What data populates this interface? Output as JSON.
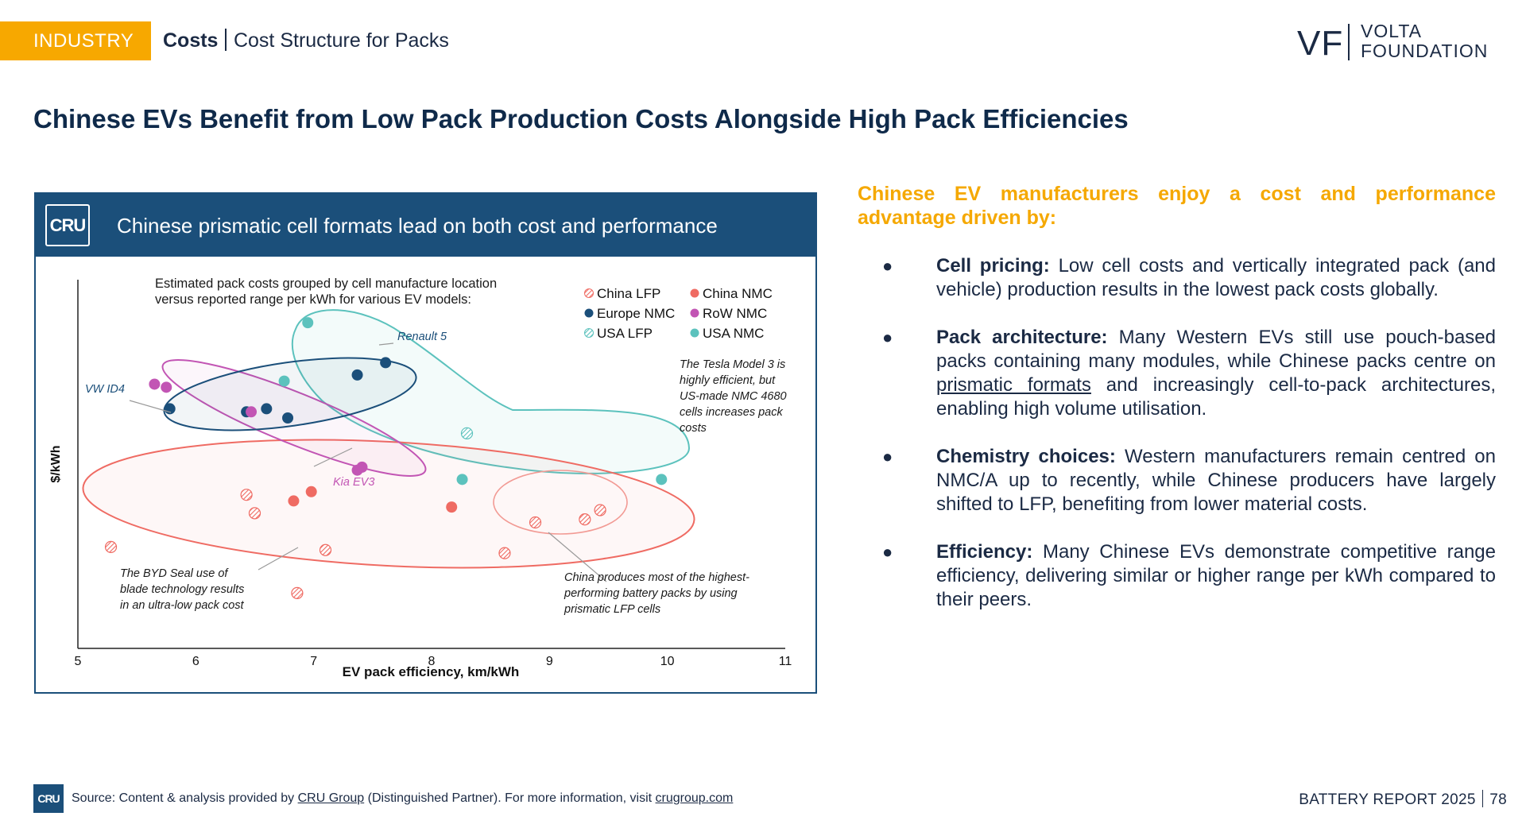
{
  "header": {
    "tag": "INDUSTRY",
    "section": "Costs",
    "subsection": "Cost Structure for Packs",
    "logo_mark": "VF",
    "logo_line1": "VOLTA",
    "logo_line2": "FOUNDATION"
  },
  "title": "Chinese EVs Benefit from Low Pack Production Costs Alongside High Pack Efficiencies",
  "panel": {
    "badge": "CRU",
    "heading": "Chinese prismatic cell formats lead on both cost and performance"
  },
  "chart_data": {
    "type": "scatter",
    "xlabel": "EV pack efficiency, km/kWh",
    "ylabel": "$/kWh",
    "xlim": [
      5,
      11
    ],
    "xticks": [
      "5",
      "6",
      "7",
      "8",
      "9",
      "10",
      "11"
    ],
    "yticks_shown": false,
    "subtitle_lines": [
      "Estimated pack costs grouped by cell manufacture location",
      "versus reported range per kWh for various EV models:"
    ],
    "legend": [
      {
        "name": "China LFP",
        "color": "#ef6b63",
        "hatched": true
      },
      {
        "name": "China NMC",
        "color": "#ef6b63",
        "hatched": false
      },
      {
        "name": "Europe NMC",
        "color": "#1b4f7a",
        "hatched": false
      },
      {
        "name": "RoW NMC",
        "color": "#c255b4",
        "hatched": false
      },
      {
        "name": "USA LFP",
        "color": "#5cc2bd",
        "hatched": true
      },
      {
        "name": "USA NMC",
        "color": "#5cc2bd",
        "hatched": false
      }
    ],
    "series": [
      {
        "name": "China LFP",
        "points": [
          [
            5.28,
            33
          ],
          [
            6.43,
            50
          ],
          [
            6.5,
            44
          ],
          [
            7.1,
            32
          ],
          [
            6.86,
            18
          ],
          [
            8.62,
            31
          ],
          [
            8.88,
            41
          ],
          [
            9.3,
            42
          ],
          [
            9.43,
            45
          ]
        ]
      },
      {
        "name": "China NMC",
        "points": [
          [
            6.83,
            48
          ],
          [
            6.98,
            51
          ],
          [
            8.17,
            46
          ]
        ]
      },
      {
        "name": "Europe NMC",
        "points": [
          [
            5.78,
            78
          ],
          [
            6.43,
            77
          ],
          [
            6.6,
            78
          ],
          [
            6.78,
            75
          ],
          [
            7.37,
            89
          ],
          [
            7.61,
            93
          ]
        ]
      },
      {
        "name": "RoW NMC",
        "points": [
          [
            5.65,
            86
          ],
          [
            5.75,
            85
          ],
          [
            6.47,
            77
          ],
          [
            7.37,
            58
          ],
          [
            7.41,
            59
          ]
        ]
      },
      {
        "name": "USA LFP",
        "points": [
          [
            8.3,
            70
          ]
        ]
      },
      {
        "name": "USA NMC",
        "points": [
          [
            6.95,
            106
          ],
          [
            6.75,
            87
          ],
          [
            8.26,
            55
          ],
          [
            9.95,
            55
          ]
        ]
      }
    ],
    "annotations": [
      {
        "text": "Renault 5",
        "style": "italic",
        "color": "#1b4f7a"
      },
      {
        "text": "VW ID4",
        "style": "italic",
        "color": "#1b4f7a"
      },
      {
        "text": "Kia EV3",
        "style": "italic",
        "color": "#c255b4"
      },
      {
        "lines": [
          "The Tesla Model 3 is",
          "highly efficient, but",
          "US-made NMC 4680",
          "cells increases pack",
          "costs"
        ],
        "style": "italic"
      },
      {
        "lines": [
          "The BYD Seal use of",
          "blade technology results",
          "in an ultra-low pack cost"
        ],
        "style": "italic"
      },
      {
        "lines": [
          "China produces most of the highest-",
          "performing battery packs by using",
          "prismatic LFP cells"
        ],
        "style": "italic"
      }
    ]
  },
  "intro": "Chinese EV manufacturers enjoy a cost and performance advantage driven by:",
  "bullets": [
    {
      "lead": "Cell pricing:",
      "text": " Low cell costs and vertically integrated pack (and vehicle) production results in the lowest pack costs globally."
    },
    {
      "lead": "Pack architecture:",
      "pre": " Many Western EVs still use pouch-based packs containing many modules, while Chinese packs centre on ",
      "link": "prismatic formats",
      "post": " and increasingly cell-to-pack architectures, enabling high volume utilisation."
    },
    {
      "lead": "Chemistry choices:",
      "text": " Western manufacturers remain centred on NMC/A up to recently, while Chinese producers have largely shifted to LFP, benefiting from lower material costs."
    },
    {
      "lead": "Efficiency:",
      "text": " Many Chinese EVs demonstrate competitive range efficiency, delivering similar or higher range per kWh compared to their peers."
    }
  ],
  "bullet_glyph": "●",
  "footer": {
    "badge": "CRU",
    "source_pre": "Source: Content & analysis provided by ",
    "source_link1": "CRU Group",
    "source_mid": " (Distinguished Partner). For more information, visit ",
    "source_link2": "crugroup.com",
    "report": "BATTERY REPORT 2025",
    "page": "78"
  }
}
